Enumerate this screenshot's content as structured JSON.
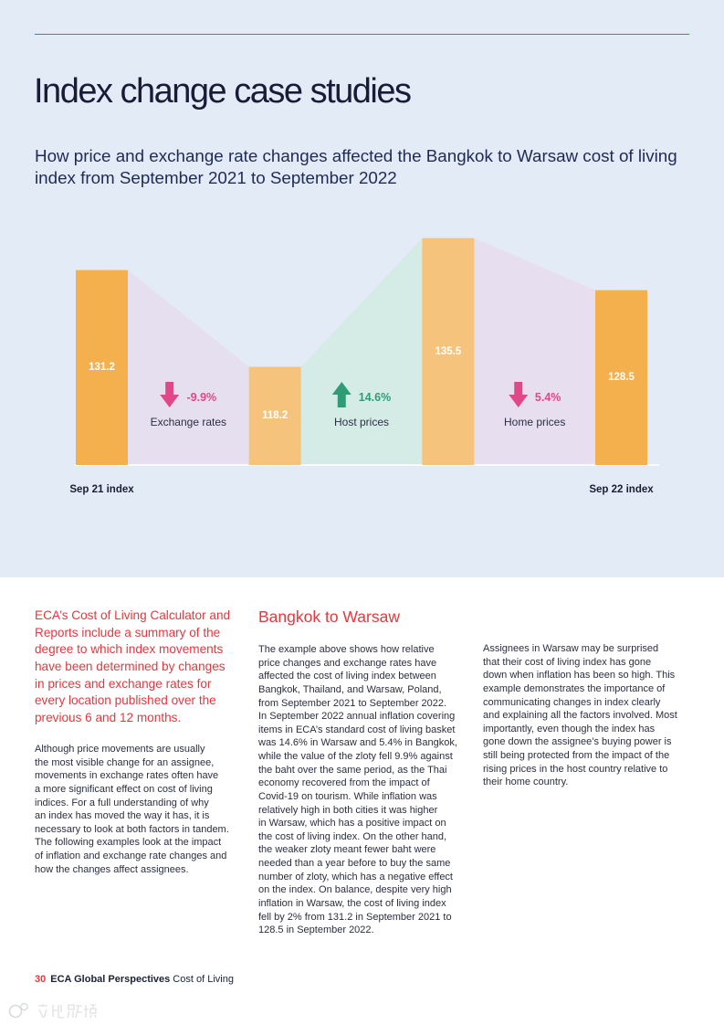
{
  "header": {
    "title": "Index change case studies"
  },
  "chart_data": {
    "type": "bar",
    "title_lines": [
      "How price and exchange rate changes affected the Bangkok to Warsaw cost of living",
      "index from September 2021 to September 2022"
    ],
    "ylim": [
      105,
      140
    ],
    "bars": [
      {
        "value": 131.2,
        "label": "131.2",
        "axis_label": "Sep 21 index",
        "color": "#f5b04e"
      },
      {
        "value": 118.2,
        "label": "118.2",
        "color": "#f6c37d"
      },
      {
        "value": 135.5,
        "label": "135.5",
        "color": "#f6c37d"
      },
      {
        "value": 128.5,
        "label": "128.5",
        "axis_label": "Sep 22 index",
        "color": "#f5b04e"
      }
    ],
    "changes": [
      {
        "factor": "Exchange rates",
        "change": "-9.9%",
        "icon": "arrow-down-icon",
        "accent": "#e2478a",
        "fill": "#e6dff0"
      },
      {
        "factor": "Host prices",
        "change": "14.6%",
        "icon": "arrow-up-icon",
        "accent": "#2e9d76",
        "fill": "#d5ece6"
      },
      {
        "factor": "Home prices",
        "change": "5.4%",
        "icon": "arrow-down-icon",
        "accent": "#e2478a",
        "fill": "#e7dff0"
      }
    ],
    "colors": {
      "baseline": "#ffffff"
    }
  },
  "intro": {
    "lines": [
      "ECA’s Cost of Living Calculator and",
      "Reports include a summary of the",
      "degree to which index movements",
      "have been determined by changes",
      "in prices and exchange rates for",
      "every location published over the",
      "previous 6 and 12 months."
    ]
  },
  "col1": {
    "lines": [
      "Although price movements are usually",
      "the most visible change for an assignee,",
      "movements in exchange rates often have",
      "a more significant effect on cost of living",
      "indices. For a full understanding of why",
      "an index has moved the way it has, it is",
      "necessary to look at both factors in tandem.",
      "The following examples look at the impact",
      "of inflation and exchange rate changes and",
      "how the changes affect assignees."
    ]
  },
  "section": {
    "heading": "Bangkok to Warsaw",
    "lines": [
      "The example above shows how relative",
      "price changes and exchange rates have",
      "affected the cost of living index between",
      "Bangkok, Thailand, and Warsaw, Poland,",
      "from September 2021 to September 2022.",
      "In September 2022 annual inflation covering",
      "items in ECA’s standard cost of living basket",
      "was 14.6% in Warsaw and 5.4% in Bangkok,",
      "while the value of the zloty fell 9.9% against",
      "the baht over the same period, as the Thai",
      "economy recovered from the impact of",
      "Covid-19 on tourism. While inflation was",
      "relatively high in both cities it was higher",
      "in Warsaw, which has a positive impact on",
      "the cost of living index. On the other hand,",
      "the weaker zloty meant fewer baht were",
      "needed than a year before to buy the same",
      "number of zloty, which has a negative effect",
      "on the index. On balance, despite very high",
      "inflation in Warsaw, the cost of living index",
      "fell by 2% from 131.2 in September 2021 to",
      "128.5 in September 2022."
    ]
  },
  "col3": {
    "lines": [
      "Assignees in Warsaw may be surprised",
      "that their cost of living index has gone",
      "down when inflation has been so high. This",
      "example demonstrates the importance of",
      "communicating changes in index clearly",
      "and explaining all the factors involved. Most",
      "importantly, even though the index has",
      "gone down the assignee’s buying power is",
      "still being protected from the impact of the",
      "rising prices in the host country relative to",
      "their home country."
    ]
  },
  "footer": {
    "page_number": "30",
    "publication": "ECA Global Perspectives",
    "section": "Cost of Living"
  },
  "watermark": {
    "text": "六趾跨境"
  }
}
